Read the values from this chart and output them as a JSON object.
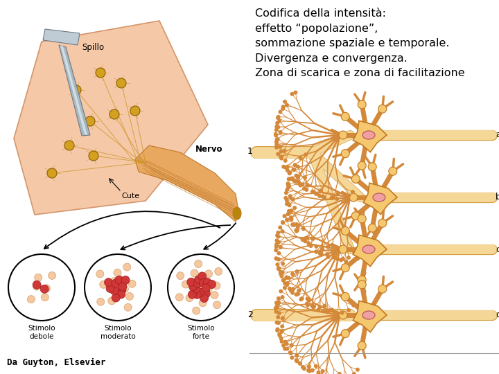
{
  "title_lines": [
    "Codifica della intensità:",
    "effetto “popolazione”,",
    "sommazione spaziale e temporale.",
    "Divergenza e convergenza.",
    "Zona di scarica e zona di facilitazione"
  ],
  "title_fontsize": 11.5,
  "title_color": "#000000",
  "footer_text": "Da Guyton, Elsevier",
  "footer_fontsize": 9,
  "background_color": "#ffffff",
  "skin_color": "#F5C8A8",
  "skin_edge": "#D4956A",
  "nerve_color": "#E8A860",
  "nerve_dark": "#C07828",
  "neuron_body_color": "#F5C870",
  "neuron_body_edge": "#C07820",
  "neuron_nucleus_color": "#F0A0A0",
  "dendrite_color": "#D4893A",
  "axon_color": "#F5D898",
  "axon_edge": "#D4A040",
  "label_color": "#333333"
}
